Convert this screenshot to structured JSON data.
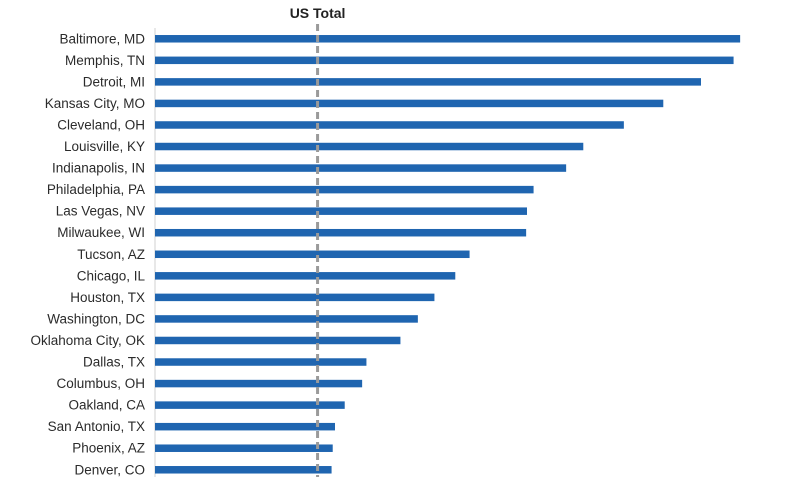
{
  "chart_data": {
    "type": "bar",
    "orientation": "horizontal",
    "categories": [
      "Baltimore, MD",
      "Memphis, TN",
      "Detroit, MI",
      "Kansas City, MO",
      "Cleveland, OH",
      "Louisville, KY",
      "Indianapolis, IN",
      "Philadelphia, PA",
      "Las Vegas, NV",
      "Milwaukee, WI",
      "Tucson, AZ",
      "Chicago, IL",
      "Houston, TX",
      "Washington, DC",
      "Oklahoma City, OK",
      "Dallas, TX",
      "Columbus, OH",
      "Oakland, CA",
      "San Antonio, TX",
      "Phoenix, AZ",
      "Denver, CO"
    ],
    "values": [
      2.048,
      2.025,
      1.911,
      1.779,
      1.641,
      1.499,
      1.439,
      1.325,
      1.302,
      1.299,
      1.101,
      1.051,
      0.978,
      0.92,
      0.859,
      0.74,
      0.725,
      0.664,
      0.63,
      0.622,
      0.618
    ],
    "reference_line": {
      "label": "US Total",
      "value": 0.569
    },
    "xlim": [
      0,
      2.1
    ],
    "grid": false,
    "legend": "none",
    "title": "",
    "xlabel": "",
    "ylabel": "",
    "colors": {
      "bar": "#1f65b0",
      "reference": "#9a9a9a",
      "axis": "#d0d0d0",
      "text": "#2b2b2b"
    }
  }
}
